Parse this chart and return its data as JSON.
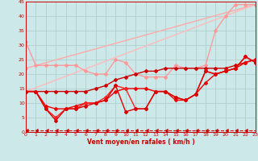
{
  "xlabel": "Vent moyen/en rafales ( km/h )",
  "xlim": [
    0,
    23
  ],
  "ylim": [
    0,
    45
  ],
  "yticks": [
    0,
    5,
    10,
    15,
    20,
    25,
    30,
    35,
    40,
    45
  ],
  "xticks": [
    0,
    1,
    2,
    3,
    4,
    5,
    6,
    7,
    8,
    9,
    10,
    11,
    12,
    13,
    14,
    15,
    16,
    17,
    18,
    19,
    20,
    21,
    22,
    23
  ],
  "background_color": "#cce8e8",
  "grid_color": "#aacccc",
  "series": [
    {
      "x": [
        0,
        23
      ],
      "y": [
        22,
        44
      ],
      "color": "#ffaaaa",
      "linewidth": 1.0,
      "marker": "D",
      "markersize": 2.0,
      "linestyle": "-"
    },
    {
      "x": [
        0,
        23
      ],
      "y": [
        14,
        44
      ],
      "color": "#ffbbbb",
      "linewidth": 1.0,
      "marker": "D",
      "markersize": 2.0,
      "linestyle": "-"
    },
    {
      "x": [
        0,
        1,
        2,
        3,
        4,
        5,
        6,
        7,
        8,
        9,
        10,
        11,
        12,
        13,
        14,
        15,
        16,
        17,
        18,
        19,
        20,
        21,
        22,
        23
      ],
      "y": [
        31,
        23,
        23,
        23,
        23,
        23,
        21,
        20,
        20,
        25,
        24,
        20,
        19,
        19,
        19,
        23,
        22,
        22,
        23,
        35,
        40,
        44,
        44,
        44
      ],
      "color": "#ff9999",
      "linewidth": 1.0,
      "marker": "D",
      "markersize": 2.0,
      "linestyle": "-"
    },
    {
      "x": [
        0,
        1,
        2,
        3,
        4,
        5,
        6,
        7,
        8,
        9,
        10,
        11,
        12,
        13,
        14,
        15,
        16,
        17,
        18,
        19,
        20,
        21,
        22,
        23
      ],
      "y": [
        14,
        14,
        14,
        14,
        14,
        14,
        14,
        15,
        16,
        18,
        19,
        20,
        21,
        21,
        22,
        22,
        22,
        22,
        22,
        22,
        22,
        23,
        24,
        25
      ],
      "color": "#cc0000",
      "linewidth": 1.0,
      "marker": "D",
      "markersize": 2.0,
      "linestyle": "-"
    },
    {
      "x": [
        0,
        1,
        2,
        3,
        4,
        5,
        6,
        7,
        8,
        9,
        10,
        11,
        12,
        13,
        14,
        15,
        16,
        17,
        18,
        19,
        20,
        21,
        22,
        23
      ],
      "y": [
        14,
        14,
        9,
        8,
        8,
        9,
        10,
        10,
        11,
        14,
        15,
        15,
        15,
        14,
        14,
        11,
        11,
        13,
        17,
        20,
        21,
        22,
        24,
        25
      ],
      "color": "#ee0000",
      "linewidth": 1.0,
      "marker": "D",
      "markersize": 2.0,
      "linestyle": "-"
    },
    {
      "x": [
        0,
        1,
        2,
        3,
        4,
        5,
        6,
        7,
        8,
        9,
        10,
        11,
        12,
        13,
        14,
        15,
        16,
        17,
        18,
        19,
        20,
        21,
        22,
        23
      ],
      "y": [
        14,
        14,
        8,
        5,
        8,
        8,
        10,
        10,
        12,
        16,
        15,
        8,
        8,
        14,
        14,
        12,
        11,
        13,
        21,
        20,
        21,
        22,
        26,
        24
      ],
      "color": "#ff2222",
      "linewidth": 1.0,
      "marker": "D",
      "markersize": 2.0,
      "linestyle": "-"
    },
    {
      "x": [
        0,
        1,
        2,
        3,
        4,
        5,
        6,
        7,
        8,
        9,
        10,
        11,
        12,
        13,
        14,
        15,
        16,
        17,
        18,
        19,
        20,
        21,
        22,
        23
      ],
      "y": [
        14,
        14,
        8,
        4,
        8,
        8,
        9,
        10,
        11,
        16,
        7,
        8,
        8,
        14,
        14,
        12,
        11,
        13,
        21,
        20,
        21,
        22,
        26,
        24
      ],
      "color": "#dd0000",
      "linewidth": 1.0,
      "marker": "D",
      "markersize": 2.0,
      "linestyle": "-"
    },
    {
      "x": [
        0,
        1,
        2,
        3,
        4,
        5,
        6,
        7,
        8,
        9,
        10,
        11,
        12,
        13,
        14,
        15,
        16,
        17,
        18,
        19,
        20,
        21,
        22,
        23
      ],
      "y": [
        0.5,
        0.5,
        0.5,
        0.5,
        0.5,
        0.5,
        0.5,
        0.5,
        0.5,
        0.5,
        0.5,
        0.5,
        0.5,
        0.5,
        0.5,
        0.5,
        0.5,
        0.5,
        0.5,
        0.5,
        0.5,
        0.5,
        0.5,
        0.5
      ],
      "color": "#cc0000",
      "linewidth": 0.8,
      "marker": 4,
      "markersize": 3,
      "linestyle": "--"
    }
  ],
  "figsize": [
    3.2,
    2.0
  ],
  "dpi": 100
}
